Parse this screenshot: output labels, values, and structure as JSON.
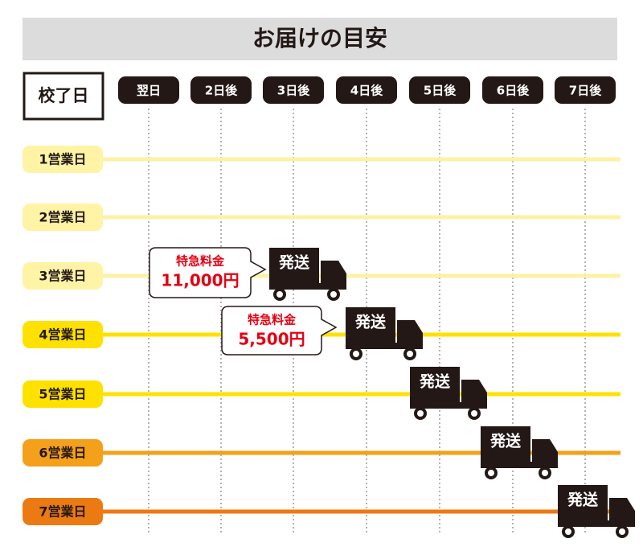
{
  "title": "お届けの目安",
  "corner_label": "校了日",
  "columns": [
    "翌日",
    "2日後",
    "3日後",
    "4日後",
    "5日後",
    "6日後",
    "7日後"
  ],
  "rows": [
    {
      "label": "1営業日"
    },
    {
      "label": "2営業日"
    },
    {
      "label": "3営業日",
      "shipping_label": "発送",
      "surcharge": {
        "label": "特急料金",
        "price": "11,000円"
      }
    },
    {
      "label": "4営業日",
      "shipping_label": "発送",
      "surcharge": {
        "label": "特急料金",
        "price": "5,500円"
      }
    },
    {
      "label": "5営業日",
      "shipping_label": "発送"
    },
    {
      "label": "6営業日",
      "shipping_label": "発送"
    },
    {
      "label": "7営業日",
      "shipping_label": "発送"
    }
  ]
}
